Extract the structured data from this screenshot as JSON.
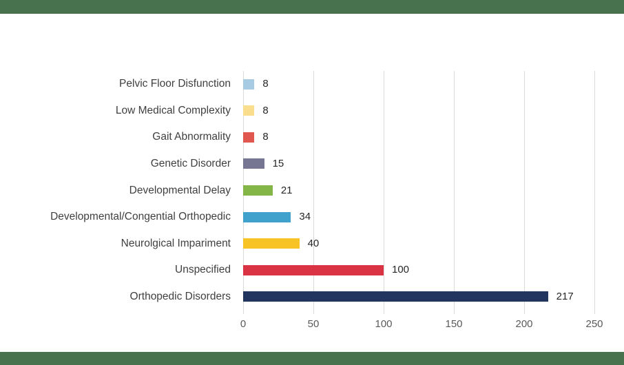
{
  "page": {
    "background_color": "#ffffff",
    "border_band_color": "#48714d"
  },
  "chart_data": {
    "type": "bar",
    "orientation": "horizontal",
    "title": "",
    "xlabel": "",
    "ylabel": "",
    "categories": [
      "Pelvic Floor Disfunction",
      "Low Medical Complexity",
      "Gait Abnormality",
      "Genetic Disorder",
      "Developmental Delay",
      "Developmental/Congential Orthopedic",
      "Neurolgical Impariment",
      "Unspecified",
      "Orthopedic Disorders"
    ],
    "values": [
      8,
      8,
      8,
      15,
      21,
      34,
      40,
      100,
      217
    ],
    "bar_colors": [
      "#a6cbe3",
      "#fbdd8e",
      "#e0574f",
      "#767693",
      "#84b547",
      "#41a1cd",
      "#f7c325",
      "#d93344",
      "#21355e"
    ],
    "data_labels": [
      "8",
      "8",
      "8",
      "15",
      "21",
      "34",
      "40",
      "100",
      "217"
    ],
    "x_ticks": [
      0,
      50,
      100,
      150,
      200,
      250
    ],
    "x_tick_labels": [
      "0",
      "50",
      "100",
      "150",
      "200",
      "250"
    ],
    "xlim": [
      0,
      250
    ],
    "grid": "vertical-gridlines-on",
    "gridline_color": "#d9d9d9",
    "legend": "none",
    "category_label_color": "#3f3f3f",
    "value_label_color": "#262626",
    "tick_label_color": "#595959"
  }
}
